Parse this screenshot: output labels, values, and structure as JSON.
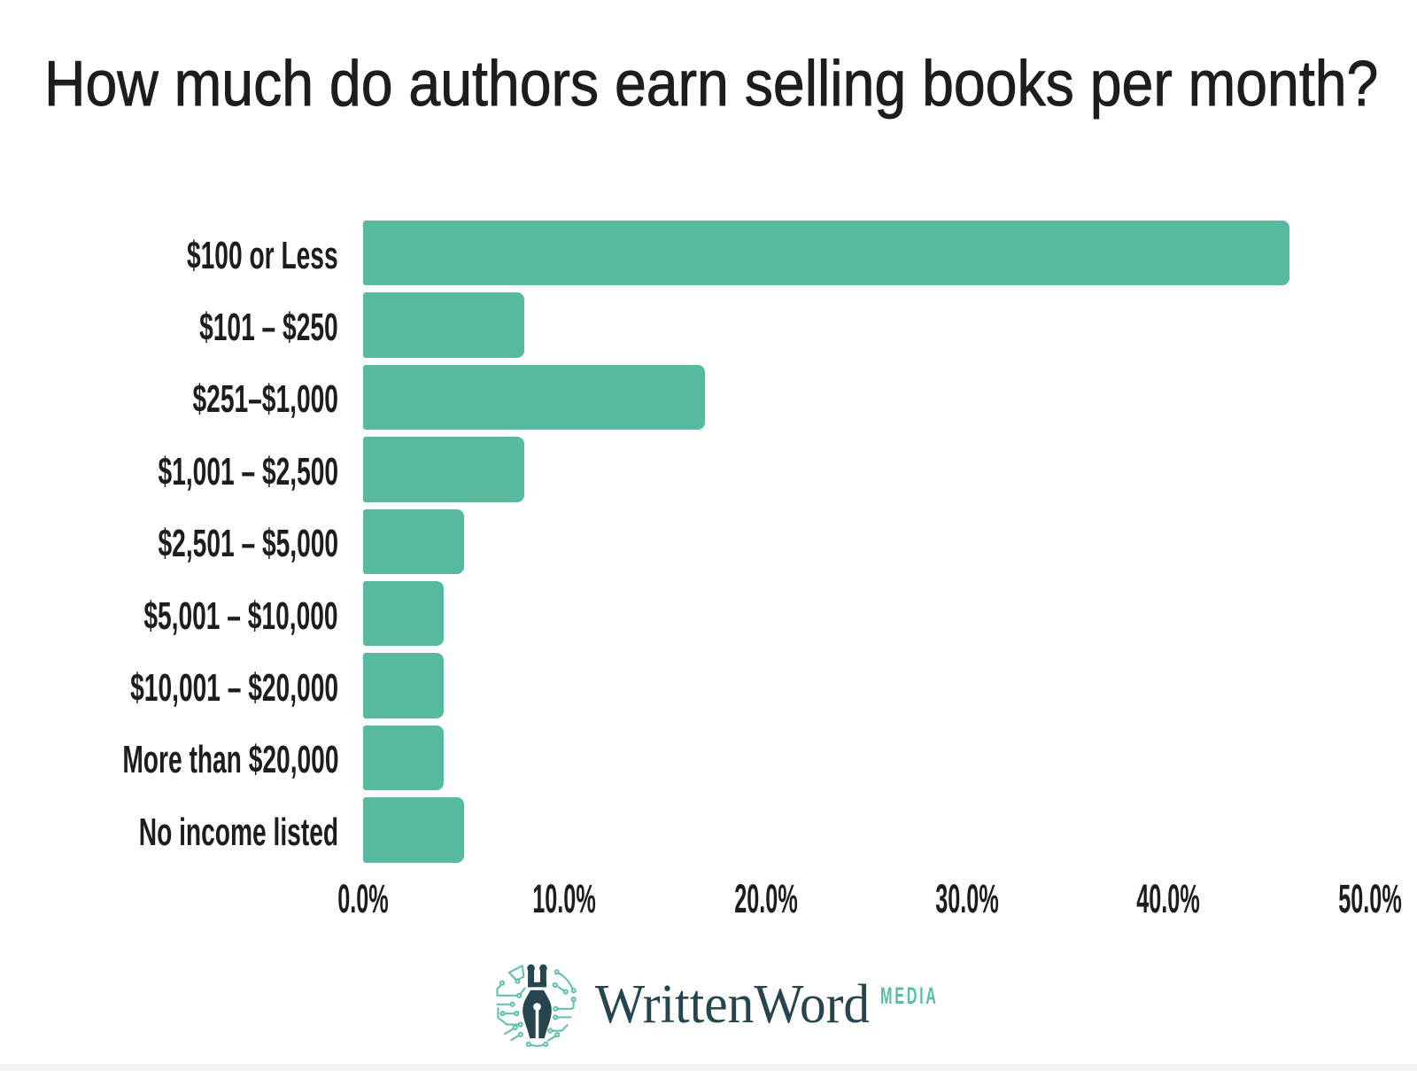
{
  "title": "How much do authors earn selling books per month?",
  "colors": {
    "bar": "#58b9a1",
    "title": "#1d1d1d",
    "label": "#1d1d1d",
    "tick": "#1d1d1d",
    "logo_dark": "#27454e",
    "logo_teal": "#62c2a9",
    "brand_text": "#2b4d58",
    "media": "#57bfa3",
    "footer_strip": "#f4f4f5"
  },
  "chart_data": {
    "type": "bar",
    "orientation": "horizontal",
    "title": "How much do authors earn selling books per month?",
    "categories": [
      "$100 or Less",
      "$101 – $250",
      "$251–$1,000",
      "$1,001 – $2,500",
      "$2,501 – $5,000",
      "$5,001 – $10,000",
      "$10,001 – $20,000",
      "More than $20,000",
      "No income listed"
    ],
    "values": [
      46,
      8,
      17,
      8,
      5,
      4,
      4,
      4,
      5
    ],
    "unit": "%",
    "xlabel": "",
    "ylabel": "",
    "xlim": [
      0,
      50
    ],
    "xticks": [
      "0.0%",
      "10.0%",
      "20.0%",
      "30.0%",
      "40.0%",
      "50.0%"
    ],
    "xtick_values": [
      0,
      10,
      20,
      30,
      40,
      50
    ],
    "grid": false,
    "legend": false,
    "bar_color": "#58b9a1"
  },
  "footer": {
    "brand": "WrittenWord",
    "brand_suffix": "MEDIA",
    "logo_icon": "pen-nib-circuit-brain"
  }
}
